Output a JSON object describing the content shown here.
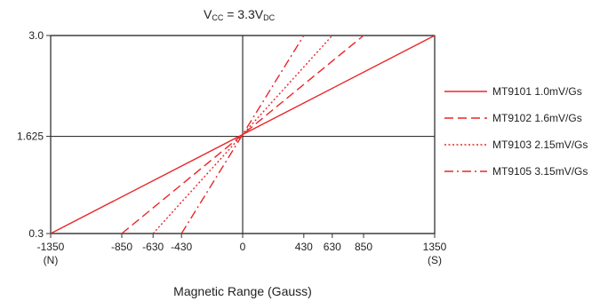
{
  "chart_data": {
    "type": "line",
    "title": {
      "prefix": "V",
      "prefix_sub": "CC",
      "middle": " =  3.3V",
      "suffix_sub": "DC"
    },
    "xlabel": "Magnetic Range (Gauss)",
    "ylabel": "",
    "xlim": [
      -1350,
      1350
    ],
    "ylim": [
      0.3,
      3.0
    ],
    "x_ticks": [
      {
        "value": -1350,
        "label": "-1350",
        "sublabel": "(N)"
      },
      {
        "value": -850,
        "label": "-850",
        "sublabel": ""
      },
      {
        "value": -630,
        "label": "-630",
        "sublabel": ""
      },
      {
        "value": -430,
        "label": "-430",
        "sublabel": ""
      },
      {
        "value": 0,
        "label": "0",
        "sublabel": ""
      },
      {
        "value": 430,
        "label": "430",
        "sublabel": ""
      },
      {
        "value": 630,
        "label": "630",
        "sublabel": ""
      },
      {
        "value": 850,
        "label": "850",
        "sublabel": ""
      },
      {
        "value": 1350,
        "label": "1350",
        "sublabel": "(S)"
      }
    ],
    "y_ticks": [
      {
        "value": 0.3,
        "label": "0.3"
      },
      {
        "value": 1.625,
        "label": "1.625"
      },
      {
        "value": 3.0,
        "label": "3.0"
      }
    ],
    "grid": {
      "horizontal": [
        0.3,
        1.625,
        3.0
      ],
      "vertical": [
        0
      ]
    },
    "legend_position": "right",
    "series": [
      {
        "name": "MT9101 1.0mV/Gs",
        "dash": "solid",
        "color": "#e8262a",
        "x": [
          -1350,
          1350
        ],
        "y": [
          0.3,
          3.0
        ]
      },
      {
        "name": "MT9102 1.6mV/Gs",
        "dash": "dashed",
        "color": "#e8262a",
        "x": [
          -850,
          850
        ],
        "y": [
          0.3,
          3.0
        ]
      },
      {
        "name": "MT9103 2.15mV/Gs",
        "dash": "dotted",
        "color": "#e8262a",
        "x": [
          -630,
          630
        ],
        "y": [
          0.3,
          3.0
        ]
      },
      {
        "name": "MT9105 3.15mV/Gs",
        "dash": "dashdot",
        "color": "#e8262a",
        "x": [
          -430,
          430
        ],
        "y": [
          0.3,
          3.0
        ]
      }
    ]
  }
}
